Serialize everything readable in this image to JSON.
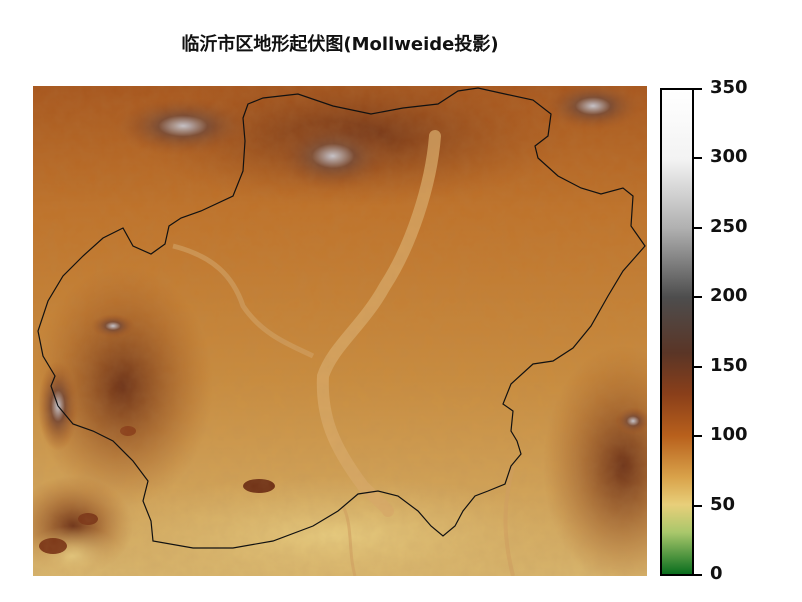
{
  "title": "临沂市区地形起伏图(Mollweide投影)",
  "colorbar": {
    "labels": [
      "350",
      "300",
      "250",
      "200",
      "150",
      "100",
      "50",
      "0"
    ],
    "stops": [
      {
        "value": 0,
        "color": "#0a6e1e"
      },
      {
        "value": 30,
        "color": "#a9c76b"
      },
      {
        "value": 50,
        "color": "#e8cf7a"
      },
      {
        "value": 70,
        "color": "#d9a24a"
      },
      {
        "value": 100,
        "color": "#b8601c"
      },
      {
        "value": 130,
        "color": "#8a3f1a"
      },
      {
        "value": 160,
        "color": "#5a3526"
      },
      {
        "value": 200,
        "color": "#4d4d4d"
      },
      {
        "value": 250,
        "color": "#b0b0b0"
      },
      {
        "value": 300,
        "color": "#f3f3f3"
      },
      {
        "value": 350,
        "color": "#ffffff"
      }
    ]
  },
  "colors": {
    "lowland": "#c8914a",
    "plain": "#c77f33",
    "upland": "#a9521a",
    "hill": "#6e3a22",
    "peak": "#b9b9c3",
    "river": "#d7a865",
    "boundary": "#111111"
  }
}
